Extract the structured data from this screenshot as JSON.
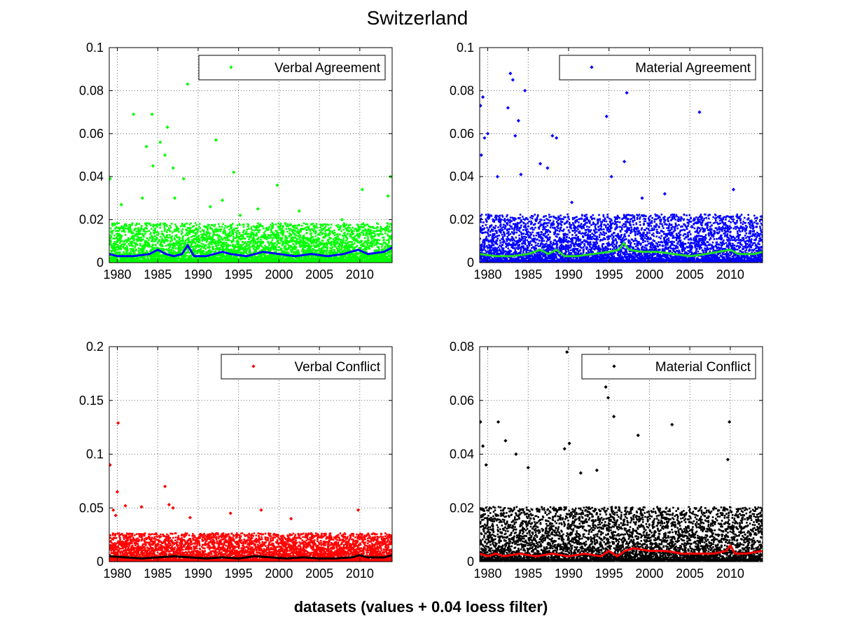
{
  "figure": {
    "title": "Switzerland",
    "xlabel": "datasets (values + 0.04 loess filter)"
  },
  "chart_data": [
    {
      "type": "scatter",
      "legend": "Verbal Agreement",
      "legend_location": "top-right",
      "grid": true,
      "xlim": [
        1979,
        2014
      ],
      "ylim": [
        0,
        0.1
      ],
      "xticks": [
        1980,
        1985,
        1990,
        1995,
        2000,
        2005,
        2010
      ],
      "yticks": [
        "0",
        "0.02",
        "0.04",
        "0.06",
        "0.08",
        "0.1"
      ],
      "ytick_values": [
        0,
        0.02,
        0.04,
        0.06,
        0.08,
        0.1
      ],
      "point_color": "#00ff00",
      "line_color": "#0000ff",
      "points": [
        [
          1979.1,
          0.039
        ],
        [
          1982.0,
          0.069
        ],
        [
          1983.6,
          0.054
        ],
        [
          1984.3,
          0.069
        ],
        [
          1984.4,
          0.045
        ],
        [
          1985.3,
          0.056
        ],
        [
          1986.2,
          0.063
        ],
        [
          1985.9,
          0.05
        ],
        [
          1988.7,
          0.083
        ],
        [
          1992.2,
          0.057
        ],
        [
          1994.4,
          0.042
        ],
        [
          1999.8,
          0.036
        ],
        [
          2010.3,
          0.034
        ],
        [
          2013.8,
          0.04
        ],
        [
          1986.9,
          0.044
        ],
        [
          1988.2,
          0.039
        ],
        [
          1980.5,
          0.027
        ],
        [
          1983.1,
          0.03
        ],
        [
          1987.1,
          0.03
        ],
        [
          1991.5,
          0.026
        ],
        [
          1993.0,
          0.029
        ],
        [
          1995.2,
          0.022
        ],
        [
          1997.4,
          0.025
        ],
        [
          2002.5,
          0.024
        ],
        [
          2007.8,
          0.02
        ],
        [
          2013.5,
          0.031
        ]
      ],
      "noise_max": 0.018,
      "loess": [
        [
          1979,
          0.004
        ],
        [
          1980,
          0.003
        ],
        [
          1982,
          0.003
        ],
        [
          1984,
          0.004
        ],
        [
          1985,
          0.006
        ],
        [
          1986,
          0.004
        ],
        [
          1987,
          0.003
        ],
        [
          1988,
          0.004
        ],
        [
          1988.7,
          0.008
        ],
        [
          1989.5,
          0.003
        ],
        [
          1991,
          0.003
        ],
        [
          1993,
          0.005
        ],
        [
          1994,
          0.004
        ],
        [
          1996,
          0.003
        ],
        [
          1998,
          0.005
        ],
        [
          2000,
          0.004
        ],
        [
          2002,
          0.003
        ],
        [
          2004,
          0.004
        ],
        [
          2006,
          0.003
        ],
        [
          2008,
          0.004
        ],
        [
          2009.8,
          0.006
        ],
        [
          2011,
          0.004
        ],
        [
          2013,
          0.005
        ],
        [
          2014,
          0.007
        ]
      ]
    },
    {
      "type": "scatter",
      "legend": "Material Agreement",
      "legend_location": "top-right",
      "grid": true,
      "xlim": [
        1979,
        2014
      ],
      "ylim": [
        0,
        0.1
      ],
      "xticks": [
        1980,
        1985,
        1990,
        1995,
        2000,
        2005,
        2010
      ],
      "yticks": [
        "0",
        "0.02",
        "0.04",
        "0.06",
        "0.08",
        "0.1"
      ],
      "ytick_values": [
        0,
        0.02,
        0.04,
        0.06,
        0.08,
        0.1
      ],
      "point_color": "#0000ff",
      "line_color": "#22dd22",
      "points": [
        [
          1979.1,
          0.073
        ],
        [
          1979.4,
          0.077
        ],
        [
          1979.2,
          0.05
        ],
        [
          1979.6,
          0.058
        ],
        [
          1980.0,
          0.06
        ],
        [
          1982.8,
          0.088
        ],
        [
          1983.1,
          0.085
        ],
        [
          1983.8,
          0.066
        ],
        [
          1984.6,
          0.08
        ],
        [
          1982.5,
          0.072
        ],
        [
          1983.4,
          0.059
        ],
        [
          1988.0,
          0.059
        ],
        [
          1988.5,
          0.058
        ],
        [
          1994.7,
          0.068
        ],
        [
          1997.2,
          0.079
        ],
        [
          2006.2,
          0.07
        ],
        [
          1996.9,
          0.047
        ],
        [
          1984.1,
          0.041
        ],
        [
          1986.5,
          0.046
        ],
        [
          1987.4,
          0.044
        ],
        [
          1981.2,
          0.04
        ],
        [
          1995.3,
          0.04
        ],
        [
          1999.1,
          0.03
        ],
        [
          2010.4,
          0.034
        ],
        [
          2001.9,
          0.032
        ],
        [
          1990.4,
          0.028
        ]
      ],
      "noise_max": 0.022,
      "loess": [
        [
          1979,
          0.004
        ],
        [
          1981,
          0.003
        ],
        [
          1983,
          0.003
        ],
        [
          1985,
          0.004
        ],
        [
          1986.5,
          0.006
        ],
        [
          1987.5,
          0.004
        ],
        [
          1988.5,
          0.006
        ],
        [
          1989.5,
          0.003
        ],
        [
          1991,
          0.003
        ],
        [
          1993,
          0.004
        ],
        [
          1995,
          0.005
        ],
        [
          1996.2,
          0.006
        ],
        [
          1996.8,
          0.009
        ],
        [
          1997.5,
          0.006
        ],
        [
          1999,
          0.005
        ],
        [
          2001,
          0.005
        ],
        [
          2003,
          0.004
        ],
        [
          2005,
          0.003
        ],
        [
          2007,
          0.004
        ],
        [
          2008.5,
          0.005
        ],
        [
          2010,
          0.006
        ],
        [
          2011,
          0.004
        ],
        [
          2013,
          0.004
        ],
        [
          2014,
          0.005
        ]
      ]
    },
    {
      "type": "scatter",
      "legend": "Verbal Conflict",
      "legend_location": "top-right",
      "grid": true,
      "xlim": [
        1979,
        2014
      ],
      "ylim": [
        0,
        0.2
      ],
      "xticks": [
        1980,
        1985,
        1990,
        1995,
        2000,
        2005,
        2010
      ],
      "yticks": [
        "0",
        "0.05",
        "0.1",
        "0.15",
        "0.2"
      ],
      "ytick_values": [
        0,
        0.05,
        0.1,
        0.15,
        0.2
      ],
      "point_color": "#ff0000",
      "line_color": "#000000",
      "points": [
        [
          1979.1,
          0.09
        ],
        [
          1980.1,
          0.129
        ],
        [
          1980.0,
          0.065
        ],
        [
          1979.5,
          0.048
        ],
        [
          1981.0,
          0.052
        ],
        [
          1983.0,
          0.051
        ],
        [
          1985.9,
          0.07
        ],
        [
          1986.4,
          0.053
        ],
        [
          1986.9,
          0.05
        ],
        [
          1979.8,
          0.043
        ],
        [
          1989.0,
          0.041
        ],
        [
          1994.0,
          0.045
        ],
        [
          1997.8,
          0.048
        ],
        [
          2001.5,
          0.04
        ],
        [
          2009.8,
          0.048
        ],
        [
          2013.8,
          0.023
        ]
      ],
      "noise_max": 0.026,
      "loess": [
        [
          1979,
          0.005
        ],
        [
          1981,
          0.004
        ],
        [
          1983,
          0.003
        ],
        [
          1985,
          0.004
        ],
        [
          1987,
          0.005
        ],
        [
          1989,
          0.004
        ],
        [
          1991,
          0.003
        ],
        [
          1993,
          0.004
        ],
        [
          1995,
          0.003
        ],
        [
          1997,
          0.005
        ],
        [
          1999,
          0.004
        ],
        [
          2001,
          0.003
        ],
        [
          2003,
          0.004
        ],
        [
          2005,
          0.003
        ],
        [
          2007,
          0.003
        ],
        [
          2009,
          0.004
        ],
        [
          2010,
          0.006
        ],
        [
          2011,
          0.004
        ],
        [
          2013,
          0.004
        ],
        [
          2014,
          0.006
        ]
      ]
    },
    {
      "type": "scatter",
      "legend": "Material Conflict",
      "legend_location": "top-right",
      "grid": true,
      "xlim": [
        1979,
        2014
      ],
      "ylim": [
        0,
        0.08
      ],
      "xticks": [
        1980,
        1985,
        1990,
        1995,
        2000,
        2005,
        2010
      ],
      "yticks": [
        "0",
        "0.02",
        "0.04",
        "0.06",
        "0.08"
      ],
      "ytick_values": [
        0,
        0.02,
        0.04,
        0.06,
        0.08
      ],
      "point_color": "#000000",
      "line_color": "#ff0000",
      "points": [
        [
          1979.1,
          0.052
        ],
        [
          1979.4,
          0.043
        ],
        [
          1981.3,
          0.052
        ],
        [
          1982.2,
          0.045
        ],
        [
          1983.5,
          0.04
        ],
        [
          1989.5,
          0.042
        ],
        [
          1989.8,
          0.078
        ],
        [
          1990.1,
          0.044
        ],
        [
          1994.6,
          0.065
        ],
        [
          1994.9,
          0.061
        ],
        [
          1995.6,
          0.054
        ],
        [
          1998.6,
          0.047
        ],
        [
          2002.8,
          0.051
        ],
        [
          2009.9,
          0.052
        ],
        [
          2009.7,
          0.038
        ],
        [
          1985.0,
          0.035
        ],
        [
          1993.5,
          0.034
        ],
        [
          1991.5,
          0.033
        ],
        [
          1979.8,
          0.036
        ]
      ],
      "noise_max": 0.02,
      "loess": [
        [
          1979,
          0.003
        ],
        [
          1980,
          0.002
        ],
        [
          1981,
          0.003
        ],
        [
          1982,
          0.002
        ],
        [
          1984,
          0.003
        ],
        [
          1986,
          0.002
        ],
        [
          1988,
          0.003
        ],
        [
          1990,
          0.002
        ],
        [
          1992,
          0.003
        ],
        [
          1994,
          0.002
        ],
        [
          1995,
          0.004
        ],
        [
          1996,
          0.002
        ],
        [
          1997,
          0.004
        ],
        [
          1998,
          0.005
        ],
        [
          2000,
          0.004
        ],
        [
          2002,
          0.004
        ],
        [
          2004,
          0.003
        ],
        [
          2006,
          0.003
        ],
        [
          2008,
          0.003
        ],
        [
          2009.5,
          0.004
        ],
        [
          2010,
          0.006
        ],
        [
          2010.6,
          0.003
        ],
        [
          2012,
          0.003
        ],
        [
          2014,
          0.004
        ]
      ]
    }
  ]
}
